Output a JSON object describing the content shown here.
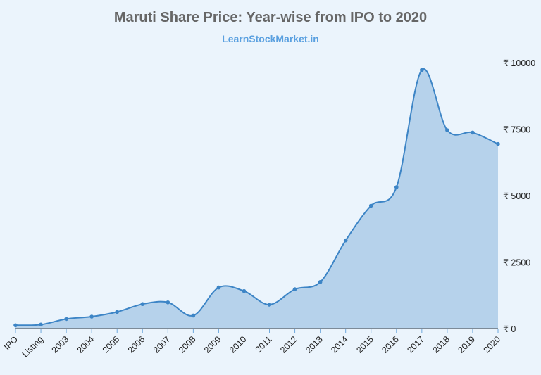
{
  "chart_data": {
    "type": "area",
    "title": "Maruti Share Price: Year-wise from IPO to 2020",
    "subtitle": "LearnStockMarket.in",
    "categories": [
      "IPO",
      "Listing",
      "2003",
      "2004",
      "2005",
      "2006",
      "2007",
      "2008",
      "2009",
      "2010",
      "2011",
      "2012",
      "2013",
      "2014",
      "2015",
      "2016",
      "2017",
      "2018",
      "2019",
      "2020"
    ],
    "values": [
      125,
      150,
      360,
      450,
      625,
      920,
      985,
      490,
      1545,
      1410,
      900,
      1480,
      1750,
      3315,
      4620,
      5315,
      9725,
      7460,
      7370,
      6940
    ],
    "ylim": [
      0,
      10000
    ],
    "yticks": [
      0,
      2500,
      5000,
      7500,
      10000
    ],
    "ytick_prefix": "₹ ",
    "y_axis_position": "right",
    "grid": false,
    "line_color": "#3d85c6",
    "fill_color": "#b6d2eb"
  }
}
